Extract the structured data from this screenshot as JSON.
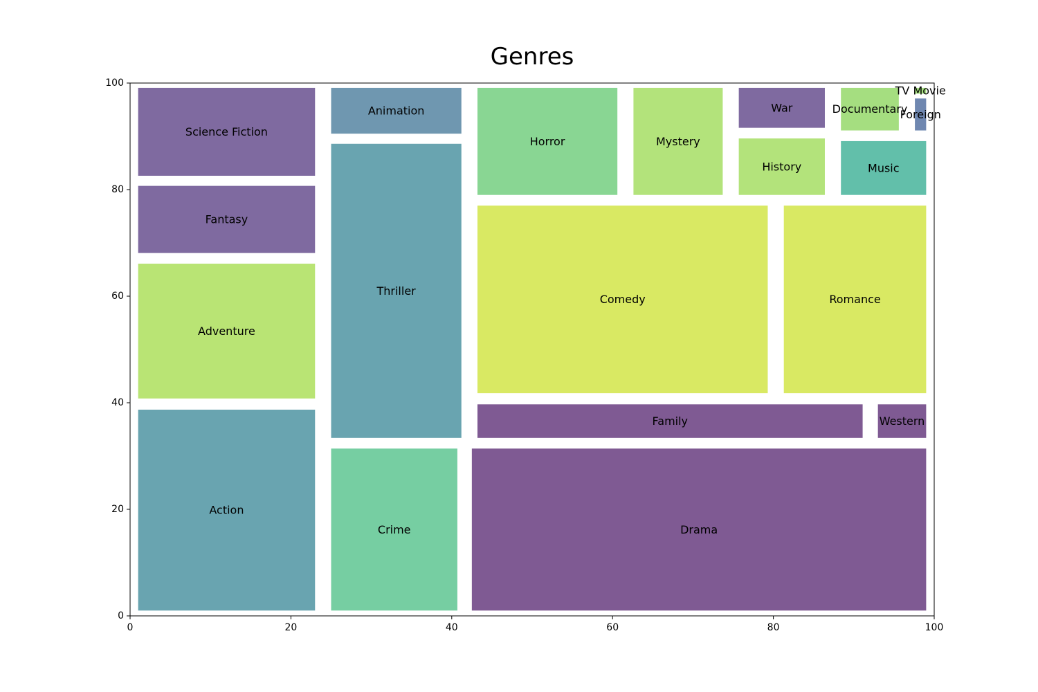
{
  "chart_data": {
    "type": "treemap",
    "title": "Genres",
    "xlabel": "",
    "ylabel": "",
    "xlim": [
      0,
      100
    ],
    "ylim": [
      0,
      100
    ],
    "xticks": [
      0,
      20,
      40,
      60,
      80,
      100
    ],
    "yticks": [
      0,
      20,
      40,
      60,
      80,
      100
    ],
    "grid": false,
    "items": [
      {
        "label": "Action",
        "x0": 1.0,
        "x1": 23.0,
        "y0": 1.0,
        "y1": 38.7,
        "color": "#69a4b0"
      },
      {
        "label": "Adventure",
        "x0": 1.0,
        "x1": 23.0,
        "y0": 40.8,
        "y1": 66.1,
        "color": "#b9e474"
      },
      {
        "label": "Fantasy",
        "x0": 1.0,
        "x1": 23.0,
        "y0": 68.1,
        "y1": 80.7,
        "color": "#7f6aa0"
      },
      {
        "label": "Science Fiction",
        "x0": 1.0,
        "x1": 23.0,
        "y0": 82.6,
        "y1": 99.1,
        "color": "#7f6aa0"
      },
      {
        "label": "Crime",
        "x0": 25.0,
        "x1": 40.7,
        "y0": 1.0,
        "y1": 31.4,
        "color": "#76cea2"
      },
      {
        "label": "Thriller",
        "x0": 25.0,
        "x1": 41.2,
        "y0": 33.4,
        "y1": 88.6,
        "color": "#69a4b0"
      },
      {
        "label": "Animation",
        "x0": 25.0,
        "x1": 41.2,
        "y0": 90.5,
        "y1": 99.1,
        "color": "#6f97b0"
      },
      {
        "label": "Drama",
        "x0": 42.5,
        "x1": 99.0,
        "y0": 1.0,
        "y1": 31.4,
        "color": "#7f5a93"
      },
      {
        "label": "Family",
        "x0": 43.2,
        "x1": 91.1,
        "y0": 33.4,
        "y1": 39.7,
        "color": "#7f5a93"
      },
      {
        "label": "Western",
        "x0": 93.0,
        "x1": 99.0,
        "y0": 33.4,
        "y1": 39.7,
        "color": "#7f5a93"
      },
      {
        "label": "Comedy",
        "x0": 43.2,
        "x1": 79.3,
        "y0": 41.8,
        "y1": 77.0,
        "color": "#d9e963"
      },
      {
        "label": "Romance",
        "x0": 81.3,
        "x1": 99.0,
        "y0": 41.8,
        "y1": 77.0,
        "color": "#d9e963"
      },
      {
        "label": "Horror",
        "x0": 43.2,
        "x1": 60.6,
        "y0": 79.0,
        "y1": 99.1,
        "color": "#89d693"
      },
      {
        "label": "Mystery",
        "x0": 62.6,
        "x1": 73.7,
        "y0": 79.0,
        "y1": 99.1,
        "color": "#b3e37b"
      },
      {
        "label": "History",
        "x0": 75.7,
        "x1": 86.4,
        "y0": 79.0,
        "y1": 89.6,
        "color": "#b3e37b"
      },
      {
        "label": "War",
        "x0": 75.7,
        "x1": 86.4,
        "y0": 91.6,
        "y1": 99.1,
        "color": "#7f6aa0"
      },
      {
        "label": "Music",
        "x0": 88.4,
        "x1": 99.0,
        "y0": 79.0,
        "y1": 89.1,
        "color": "#62bfaa"
      },
      {
        "label": "Documentary",
        "x0": 88.4,
        "x1": 95.6,
        "y0": 91.1,
        "y1": 99.1,
        "color": "#a5de80"
      },
      {
        "label": "Foreign",
        "x0": 97.6,
        "x1": 99.0,
        "y0": 91.1,
        "y1": 97.1,
        "color": "#6f87b0"
      },
      {
        "label": "TV Movie",
        "x0": 97.6,
        "x1": 99.0,
        "y0": 98.0,
        "y1": 99.1,
        "color": "#a5de80"
      }
    ]
  }
}
